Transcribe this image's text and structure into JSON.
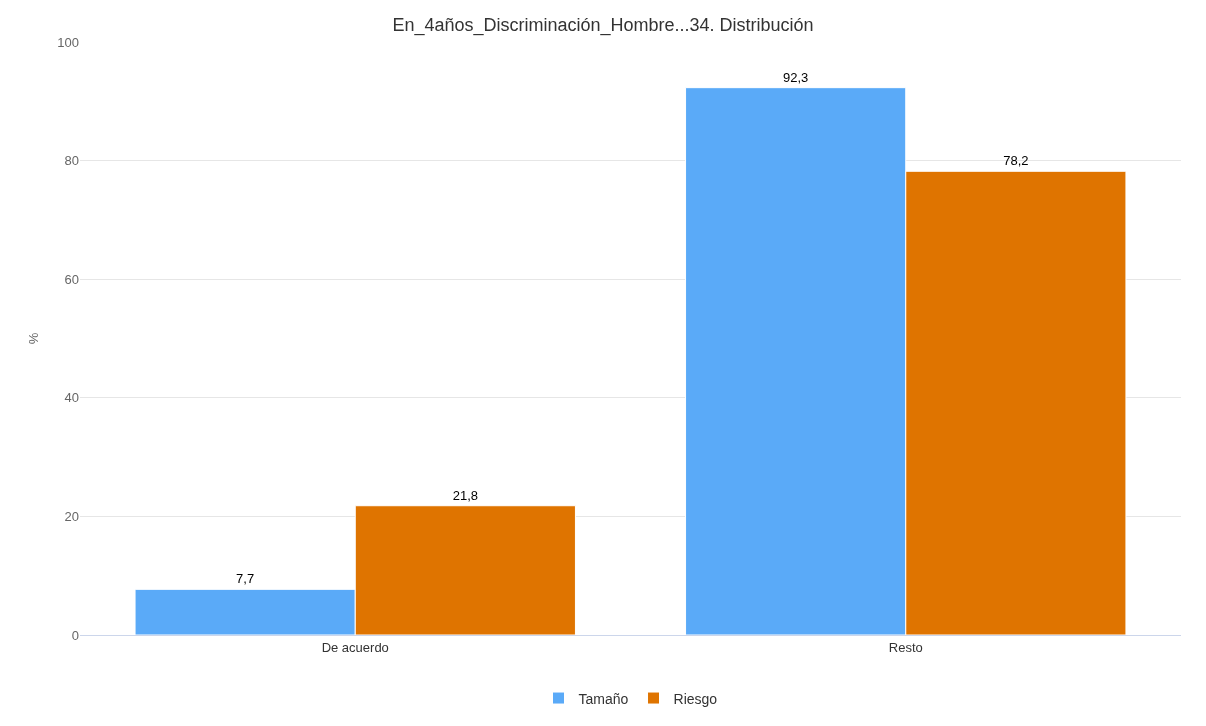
{
  "chart_data": {
    "type": "bar",
    "title": "En_4años_Discriminación_Hombre...34. Distribución",
    "ylabel": "%",
    "categories": [
      "De acuerdo",
      "Resto"
    ],
    "series": [
      {
        "name": "Tamaño",
        "color": "#5aaaf8",
        "values": [
          7.7,
          92.3
        ],
        "value_labels": [
          "7,7",
          "92,3"
        ]
      },
      {
        "name": "Riesgo",
        "color": "#df7400",
        "values": [
          21.8,
          78.2
        ],
        "value_labels": [
          "21,8",
          "78,2"
        ]
      }
    ],
    "ylim": [
      0,
      100
    ],
    "yticks": [
      0,
      20,
      40,
      60,
      80,
      100
    ],
    "grid": "y",
    "legend": "bottom"
  }
}
